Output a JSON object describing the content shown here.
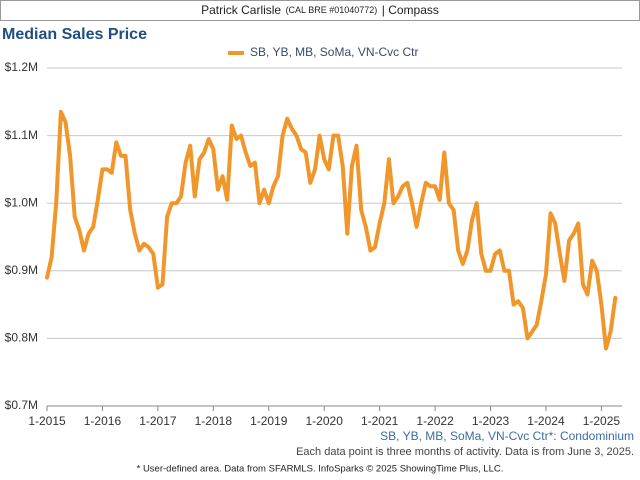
{
  "header": {
    "name": "Patrick Carlisle",
    "license": "(CAL BRE #01040772)",
    "company": "| Compass"
  },
  "chart_data": {
    "type": "line",
    "title": "Median Sales Price",
    "x": [
      "1-2015",
      "2-2015",
      "3-2015",
      "4-2015",
      "5-2015",
      "6-2015",
      "7-2015",
      "8-2015",
      "9-2015",
      "10-2015",
      "11-2015",
      "12-2015",
      "1-2016",
      "2-2016",
      "3-2016",
      "4-2016",
      "5-2016",
      "6-2016",
      "7-2016",
      "8-2016",
      "9-2016",
      "10-2016",
      "11-2016",
      "12-2016",
      "1-2017",
      "2-2017",
      "3-2017",
      "4-2017",
      "5-2017",
      "6-2017",
      "7-2017",
      "8-2017",
      "9-2017",
      "10-2017",
      "11-2017",
      "12-2017",
      "1-2018",
      "2-2018",
      "3-2018",
      "4-2018",
      "5-2018",
      "6-2018",
      "7-2018",
      "8-2018",
      "9-2018",
      "10-2018",
      "11-2018",
      "12-2018",
      "1-2019",
      "2-2019",
      "3-2019",
      "4-2019",
      "5-2019",
      "6-2019",
      "7-2019",
      "8-2019",
      "9-2019",
      "10-2019",
      "11-2019",
      "12-2019",
      "1-2020",
      "2-2020",
      "3-2020",
      "4-2020",
      "5-2020",
      "6-2020",
      "7-2020",
      "8-2020",
      "9-2020",
      "10-2020",
      "11-2020",
      "12-2020",
      "1-2021",
      "2-2021",
      "3-2021",
      "4-2021",
      "5-2021",
      "6-2021",
      "7-2021",
      "8-2021",
      "9-2021",
      "10-2021",
      "11-2021",
      "12-2021",
      "1-2022",
      "2-2022",
      "3-2022",
      "4-2022",
      "5-2022",
      "6-2022",
      "7-2022",
      "8-2022",
      "9-2022",
      "10-2022",
      "11-2022",
      "12-2022",
      "1-2023",
      "2-2023",
      "3-2023",
      "4-2023",
      "5-2023",
      "6-2023",
      "7-2023",
      "8-2023",
      "9-2023",
      "10-2023",
      "11-2023",
      "12-2023",
      "1-2024",
      "2-2024",
      "3-2024",
      "4-2024",
      "5-2024",
      "6-2024",
      "7-2024",
      "8-2024",
      "9-2024",
      "10-2024",
      "11-2024",
      "12-2024",
      "1-2025",
      "2-2025",
      "3-2025",
      "4-2025"
    ],
    "series": [
      {
        "name": "SB, YB, MB, SoMa, VN-Cvc Ctr",
        "color": "#f0962a",
        "values": [
          890000,
          920000,
          1000000,
          1135000,
          1120000,
          1070000,
          980000,
          960000,
          930000,
          955000,
          965000,
          1005000,
          1050000,
          1050000,
          1045000,
          1090000,
          1070000,
          1070000,
          990000,
          955000,
          930000,
          940000,
          935000,
          925000,
          875000,
          880000,
          980000,
          1000000,
          1000000,
          1010000,
          1060000,
          1085000,
          1010000,
          1065000,
          1075000,
          1095000,
          1080000,
          1020000,
          1040000,
          1005000,
          1115000,
          1095000,
          1100000,
          1075000,
          1055000,
          1060000,
          1000000,
          1020000,
          1000000,
          1025000,
          1040000,
          1100000,
          1125000,
          1110000,
          1100000,
          1080000,
          1075000,
          1030000,
          1050000,
          1100000,
          1065000,
          1050000,
          1100000,
          1100000,
          1055000,
          955000,
          1055000,
          1085000,
          990000,
          965000,
          930000,
          935000,
          970000,
          1000000,
          1065000,
          1000000,
          1010000,
          1025000,
          1030000,
          1000000,
          965000,
          1000000,
          1030000,
          1025000,
          1025000,
          1005000,
          1075000,
          1000000,
          990000,
          930000,
          910000,
          930000,
          975000,
          1000000,
          925000,
          900000,
          900000,
          925000,
          930000,
          900000,
          900000,
          850000,
          855000,
          845000,
          800000,
          810000,
          820000,
          855000,
          895000,
          985000,
          970000,
          925000,
          885000,
          945000,
          955000,
          970000,
          880000,
          865000,
          915000,
          900000,
          850000,
          785000,
          810000,
          860000
        ]
      }
    ],
    "xticks": [
      "1-2015",
      "1-2016",
      "1-2017",
      "1-2018",
      "1-2019",
      "1-2020",
      "1-2021",
      "1-2022",
      "1-2023",
      "1-2024",
      "1-2025"
    ],
    "ylim": [
      700000,
      1200000
    ],
    "yticks": [
      {
        "value": 700000,
        "label": "$0.7M"
      },
      {
        "value": 800000,
        "label": "$0.8M"
      },
      {
        "value": 900000,
        "label": "$0.9M"
      },
      {
        "value": 1000000,
        "label": "$1.0M"
      },
      {
        "value": 1100000,
        "label": "$1.1M"
      },
      {
        "value": 1200000,
        "label": "$1.2M"
      }
    ],
    "grid": true
  },
  "footer": {
    "area_note": "SB, YB, MB, SoMa, VN-Cvc Ctr*: Condominium",
    "data_note": "Each data point is three months of activity. Data is from June 3, 2025.",
    "source": "* User-defined area. Data from SFARMLS. InfoSparks © 2025 ShowingTime Plus, LLC."
  }
}
